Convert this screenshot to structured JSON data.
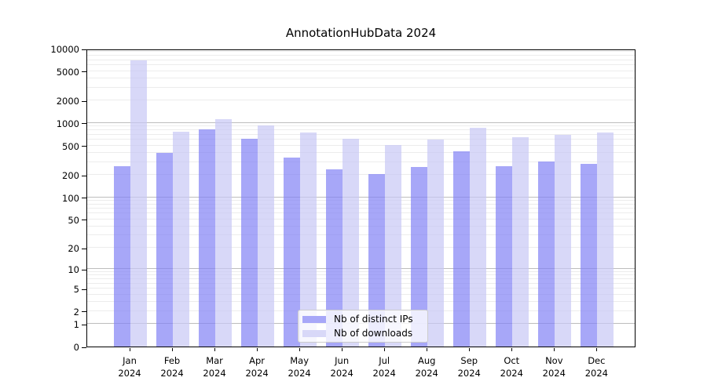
{
  "chart_data": {
    "type": "bar",
    "title": "AnnotationHubData 2024",
    "categories": [
      "Jan",
      "Feb",
      "Mar",
      "Apr",
      "May",
      "Jun",
      "Jul",
      "Aug",
      "Sep",
      "Oct",
      "Nov",
      "Dec"
    ],
    "category_year": "2024",
    "series": [
      {
        "name": "Nb of distinct IPs",
        "color": "rgba(130,130,245,0.7)",
        "legend_color": "#a7a7f8",
        "values": [
          260,
          395,
          820,
          615,
          345,
          240,
          205,
          258,
          420,
          260,
          307,
          280
        ]
      },
      {
        "name": "Nb of downloads",
        "color": "rgba(200,200,245,0.7)",
        "legend_color": "#d8d8f8",
        "values": [
          6900,
          760,
          1120,
          930,
          740,
          620,
          510,
          600,
          865,
          640,
          700,
          750
        ]
      }
    ],
    "yscale": "log1p",
    "ylim": [
      0,
      10000
    ],
    "yticks": [
      0,
      1,
      2,
      5,
      10,
      20,
      50,
      100,
      200,
      500,
      1000,
      2000,
      5000,
      10000
    ],
    "grid": {
      "on": true,
      "major_values": [
        1,
        10,
        100,
        1000
      ],
      "minor_decades": [
        1,
        10,
        100,
        1000
      ],
      "major_color": "#bdbdbd",
      "minor_color": "#ececec"
    },
    "legend_position": "lower center"
  }
}
